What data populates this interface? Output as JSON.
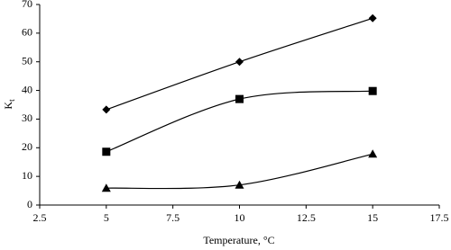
{
  "chart_data": {
    "type": "line",
    "smooth": true,
    "x_label": "Temperature, °C",
    "y_label": "K",
    "y_label_sub": "t",
    "x": [
      5,
      10,
      15
    ],
    "series": [
      {
        "marker": "diamond",
        "color": "#000000",
        "values": [
          33.3,
          50,
          65.2
        ]
      },
      {
        "marker": "square",
        "color": "#000000",
        "values": [
          18.6,
          37,
          39.8
        ]
      },
      {
        "marker": "triangle",
        "color": "#000000",
        "values": [
          5.9,
          7,
          17.8
        ]
      }
    ],
    "xlim": [
      2.5,
      17.5
    ],
    "xticks": [
      2.5,
      5,
      7.5,
      10,
      12.5,
      15,
      17.5
    ],
    "ylim": [
      0,
      70
    ],
    "yticks": [
      0,
      10,
      20,
      30,
      40,
      50,
      60,
      70
    ],
    "grid": false
  }
}
